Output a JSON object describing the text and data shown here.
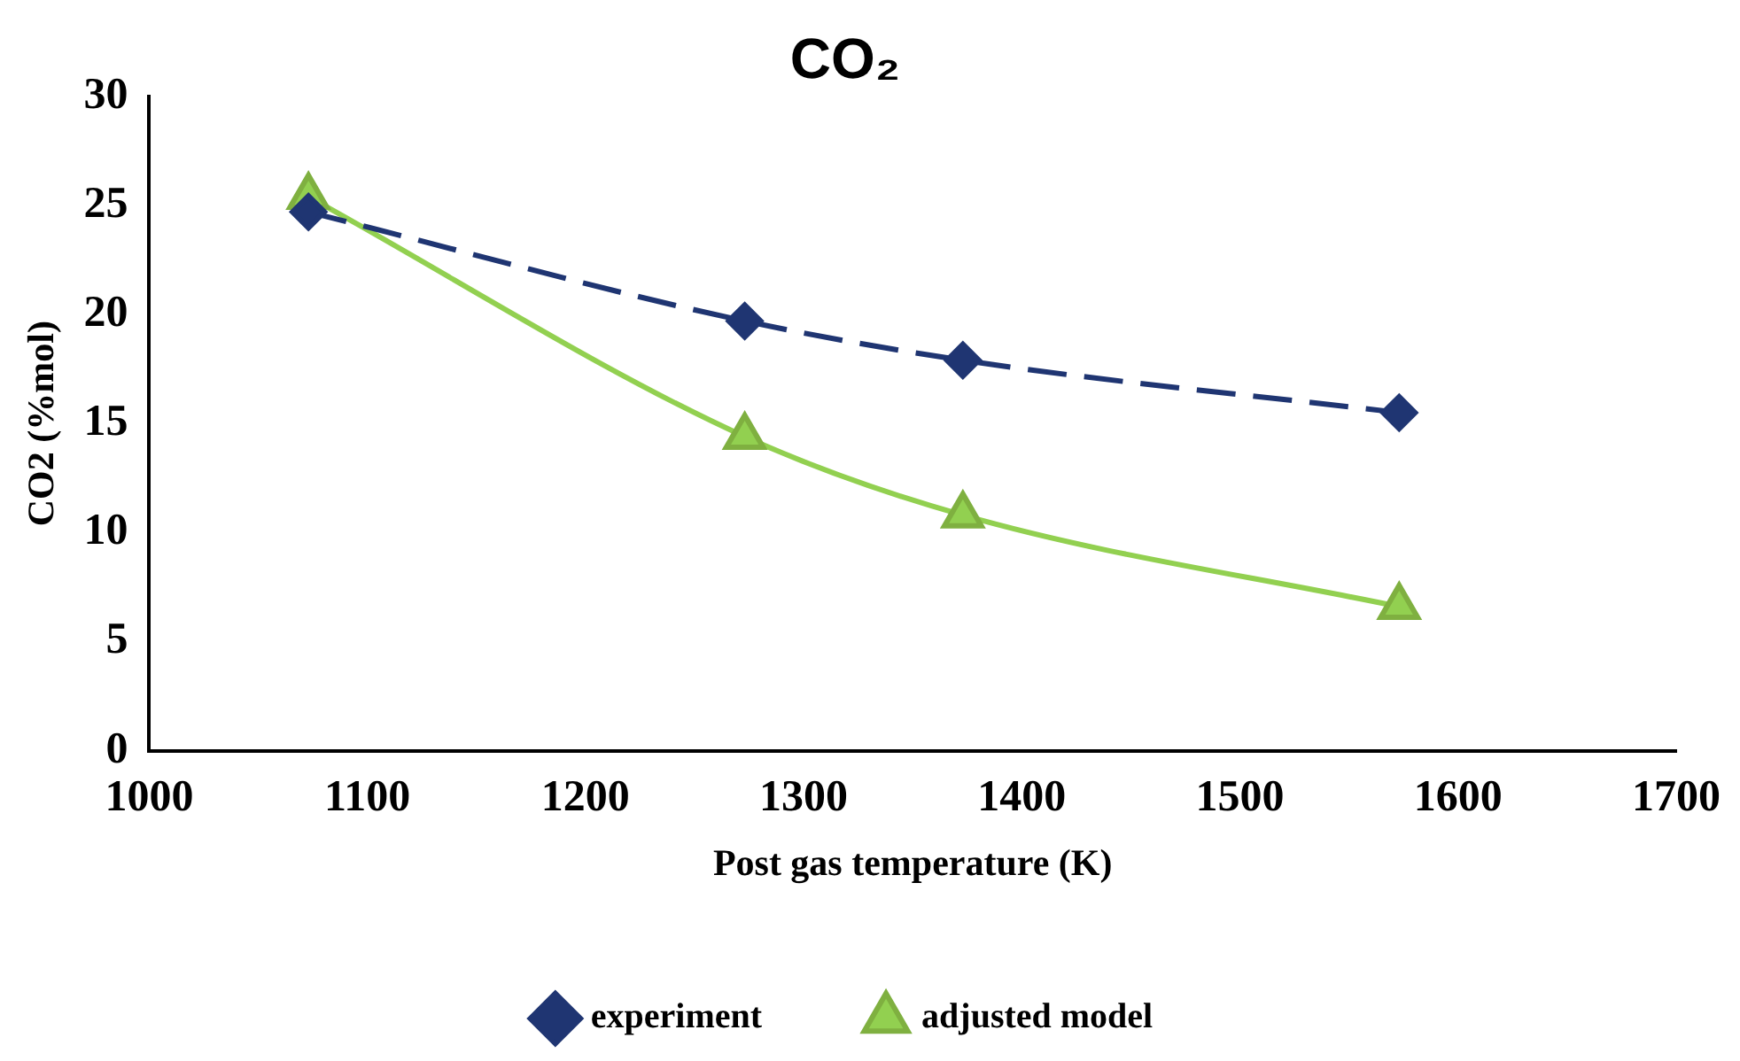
{
  "chart_data": {
    "type": "line",
    "title": "CO₂",
    "xlabel": "Post gas temperature (K)",
    "ylabel": "CO2 (%mol)",
    "xlim": [
      1000,
      1700
    ],
    "xticks": [
      1000,
      1100,
      1200,
      1300,
      1400,
      1500,
      1600,
      1700
    ],
    "ylim": [
      0,
      30
    ],
    "yticks": [
      0,
      5,
      10,
      15,
      20,
      25,
      30
    ],
    "grid": false,
    "legend": "bottom",
    "series": [
      {
        "name": "experiment",
        "color": "#1f3572",
        "x": [
          1073,
          1273,
          1373,
          1573
        ],
        "values": [
          24.7,
          19.7,
          17.9,
          15.5
        ],
        "marker": "diamond",
        "line_style": "dashed"
      },
      {
        "name": "adjusted model",
        "color": "#92d050",
        "x": [
          1073,
          1273,
          1373,
          1573
        ],
        "values": [
          25.4,
          14.4,
          10.8,
          6.6
        ],
        "marker": "triangle",
        "line_style": "solid"
      }
    ]
  }
}
